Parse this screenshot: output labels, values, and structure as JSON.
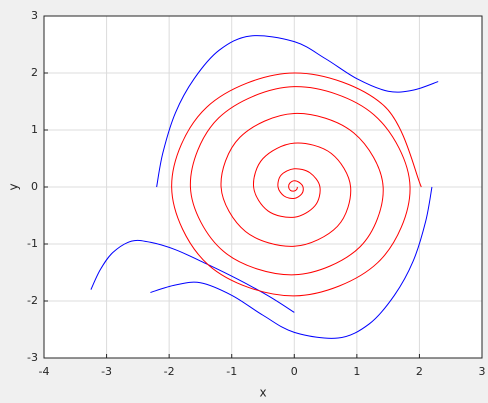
{
  "chart_data": {
    "type": "line",
    "xlabel": "x",
    "ylabel": "y",
    "xlim": [
      -4,
      3
    ],
    "ylim": [
      -3,
      3
    ],
    "xticks": [
      -4,
      -3,
      -2,
      -1,
      0,
      1,
      2,
      3
    ],
    "yticks": [
      -3,
      -2,
      -1,
      0,
      1,
      2,
      3
    ],
    "grid": true,
    "series": [
      {
        "color": "#0000ff",
        "x": [
          -2.2,
          -2.1,
          -1.9,
          -1.6,
          -1.2,
          -0.7,
          0,
          0.5,
          1.0,
          1.5,
          1.9,
          2.3
        ],
        "values": [
          0,
          0.6,
          1.3,
          1.9,
          2.4,
          2.65,
          2.55,
          2.25,
          1.9,
          1.68,
          1.7,
          1.85
        ]
      },
      {
        "color": "#0000ff",
        "x": [
          2.2,
          2.1,
          1.9,
          1.6,
          1.2,
          0.7,
          0,
          -0.5,
          -1.0,
          -1.5,
          -1.9,
          -2.3
        ],
        "values": [
          0,
          -0.6,
          -1.3,
          -1.9,
          -2.4,
          -2.65,
          -2.55,
          -2.25,
          -1.9,
          -1.68,
          -1.72,
          -1.85
        ]
      },
      {
        "color": "#0000ff",
        "x": [
          -3.25,
          -3.1,
          -2.9,
          -2.6,
          -2.3,
          -1.9,
          -1.4,
          -0.9,
          -0.4,
          0
        ],
        "values": [
          -1.8,
          -1.45,
          -1.15,
          -0.95,
          -0.97,
          -1.1,
          -1.35,
          -1.62,
          -1.92,
          -2.2
        ]
      },
      {
        "color": "#ff0000",
        "x": [
          0.05,
          0.04,
          0,
          -0.06,
          -0.09,
          -0.07,
          0,
          0.08,
          0.14,
          0.12,
          0,
          -0.16,
          -0.26,
          -0.21,
          0,
          0.25,
          0.41,
          0.33,
          0,
          -0.42,
          -0.65,
          -0.5,
          0,
          0.59,
          0.9,
          0.69,
          0,
          -0.78,
          -1.17,
          -0.87,
          0,
          0.95,
          1.42,
          1.05,
          0,
          -1.13,
          -1.66,
          -1.21,
          0,
          1.27,
          1.85,
          1.33,
          0,
          -1.37,
          -1.96,
          -1.4,
          0,
          1.43,
          2.03
        ],
        "values": [
          0,
          -0.04,
          -0.07,
          -0.06,
          0,
          0.07,
          0.11,
          0.08,
          0,
          -0.12,
          -0.2,
          -0.16,
          0,
          0.21,
          0.32,
          0.25,
          0,
          -0.33,
          -0.53,
          -0.42,
          0,
          0.5,
          0.77,
          0.59,
          0,
          -0.69,
          -1.04,
          -0.78,
          0,
          0.87,
          1.29,
          0.95,
          0,
          -1.05,
          -1.54,
          -1.13,
          0,
          1.21,
          1.76,
          1.27,
          0,
          -1.33,
          -1.91,
          -1.37,
          0,
          1.4,
          2.0,
          1.43,
          0
        ]
      }
    ]
  }
}
